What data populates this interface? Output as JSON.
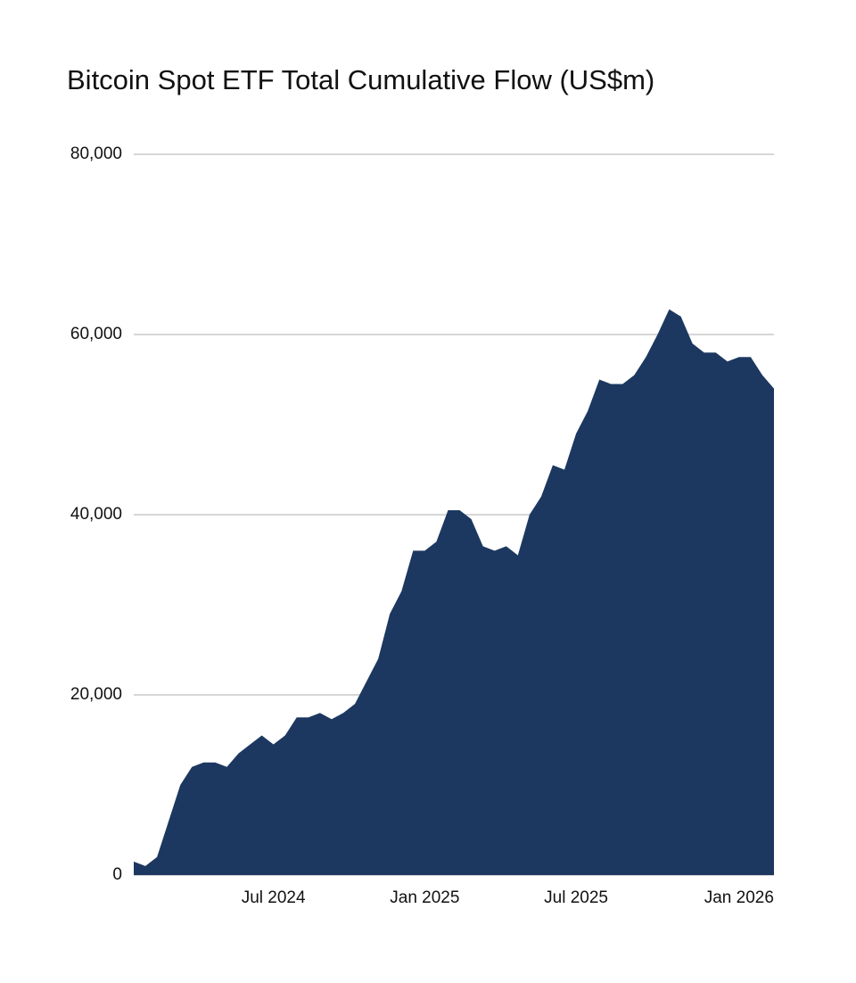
{
  "chart_data": {
    "type": "area",
    "title": "Bitcoin Spot ETF Total Cumulative Flow (US$m)",
    "categories": [
      null,
      null,
      null,
      null,
      null,
      null,
      null,
      null,
      null,
      null,
      null,
      null,
      "Jul 2024",
      null,
      null,
      null,
      null,
      null,
      null,
      null,
      null,
      null,
      null,
      null,
      null,
      "Jan 2025",
      null,
      null,
      null,
      null,
      null,
      null,
      null,
      null,
      null,
      null,
      null,
      null,
      "Jul 2025",
      null,
      null,
      null,
      null,
      null,
      null,
      null,
      null,
      null,
      null,
      null,
      null,
      null,
      "Jan 2026",
      null,
      null,
      null
    ],
    "values": [
      1500,
      1000,
      2000,
      6000,
      10000,
      12000,
      12500,
      12500,
      12000,
      13500,
      14500,
      15500,
      14500,
      15500,
      17500,
      17500,
      18000,
      17300,
      18000,
      19000,
      21500,
      24000,
      29000,
      31500,
      36000,
      36000,
      37000,
      40500,
      40500,
      39500,
      36500,
      36000,
      36500,
      35500,
      40000,
      42000,
      45500,
      45000,
      49000,
      51500,
      55000,
      54500,
      54500,
      55500,
      57500,
      60000,
      62800,
      62000,
      59000,
      58000,
      58000,
      57000,
      57500,
      57500,
      55500,
      54000
    ],
    "color": "#1c3860",
    "ylim": [
      0,
      80000
    ],
    "yticks": [
      0,
      {
        "value": 20000,
        "label": "20,000"
      },
      {
        "value": 40000,
        "label": "40,000"
      },
      {
        "value": 60000,
        "label": "60,000"
      },
      {
        "value": 80000,
        "label": "80,000"
      }
    ],
    "grid": true
  }
}
